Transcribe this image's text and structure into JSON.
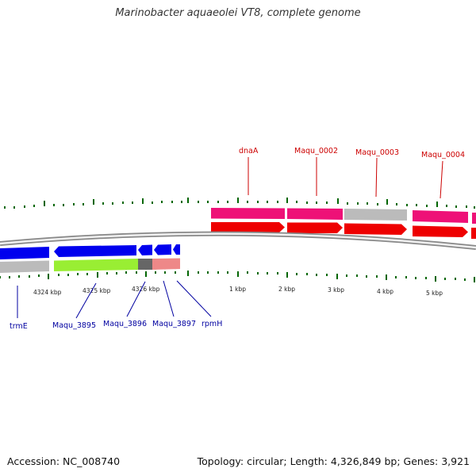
{
  "title": "Marinobacter aquaeolei VT8, complete genome",
  "accession": "Accession: NC_008740",
  "topology": "Topology: circular; Length: 4,326,849 bp; Genes: 3,921",
  "colors": {
    "forward_gene": "#ff0000",
    "forward_cds": "#ee1177",
    "reverse_gene": "#0000ee",
    "reverse_cds_gray": "#bbbbbb",
    "reverse_cds_green": "#99ee33",
    "reverse_cds_pink": "#ee8888",
    "tick": "#006600",
    "label_forward": "#cc0000",
    "label_reverse": "#0000a0"
  },
  "scale_labels": [
    "4324 kbp",
    "4325 kbp",
    "4326 kbp",
    "1 kbp",
    "2 kbp",
    "3 kbp",
    "4 kbp",
    "5 kbp"
  ],
  "forward_genes": [
    "dnaA",
    "Maqu_0002",
    "Maqu_0003",
    "Maqu_0004"
  ],
  "reverse_genes": [
    "trmE",
    "Maqu_3895",
    "Maqu_3896",
    "Maqu_3897",
    "rpmH"
  ]
}
